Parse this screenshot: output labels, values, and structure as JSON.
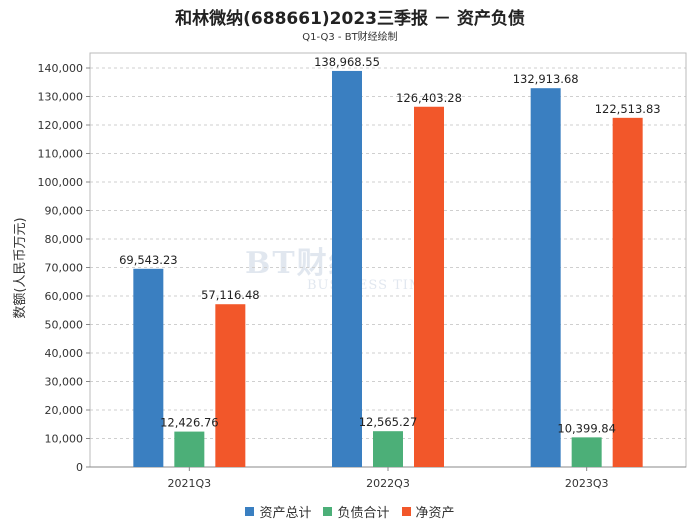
{
  "chart_data": {
    "type": "bar",
    "title": "和林微纳(688661)2023三季报 － 资产负债",
    "subtitle": "Q1-Q3 - BT财经绘制",
    "ylabel": "数额(人民币万元)",
    "xlabel": "",
    "categories": [
      "2021Q3",
      "2022Q3",
      "2023Q3"
    ],
    "ylim": [
      0,
      140000
    ],
    "yticks": [
      0,
      10000,
      20000,
      30000,
      40000,
      50000,
      60000,
      70000,
      80000,
      90000,
      100000,
      110000,
      120000,
      130000,
      140000
    ],
    "ytick_labels": [
      "0",
      "10,000",
      "20,000",
      "30,000",
      "40,000",
      "50,000",
      "60,000",
      "70,000",
      "80,000",
      "90,000",
      "100,000",
      "110,000",
      "120,000",
      "130,000",
      "140,000"
    ],
    "grid": true,
    "legend_position": "bottom-center",
    "series": [
      {
        "name": "资产总计",
        "color": "#3a7fc1",
        "values": [
          69543.23,
          138968.55,
          132913.68
        ],
        "labels": [
          "69,543.23",
          "138,968.55",
          "132,913.68"
        ]
      },
      {
        "name": "负债合计",
        "color": "#4caf78",
        "values": [
          12426.76,
          12565.27,
          10399.84
        ],
        "labels": [
          "12,426.76",
          "12,565.27",
          "10,399.84"
        ]
      },
      {
        "name": "净资产",
        "color": "#f2572a",
        "values": [
          57116.48,
          126403.28,
          122513.83
        ],
        "labels": [
          "57,116.48",
          "126,403.28",
          "122,513.83"
        ]
      }
    ]
  },
  "watermark": {
    "main": "BT财经",
    "sub": "BUSINESS TIMES"
  }
}
